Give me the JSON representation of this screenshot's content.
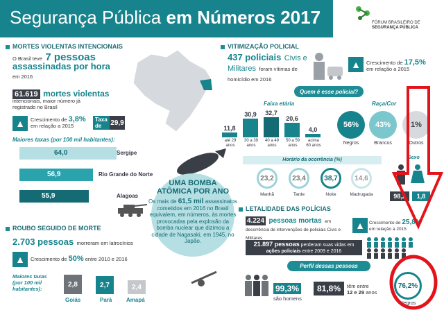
{
  "header": {
    "title_light": "Segurança Pública ",
    "title_bold": "em Números 2017"
  },
  "logo": {
    "line1": "FÓRUM BRASILEIRO DE",
    "line2": "SEGURANÇA PÚBLICA"
  },
  "mortes": {
    "section_title": "MORTES VIOLENTAS INTENCIONAIS",
    "prefix": "O Brasil teve",
    "big": "7 pessoas",
    "big2": "assassinadas por hora",
    "suffix": "em 2016",
    "count": "61.619",
    "count_label": "mortes violentas",
    "count_sub1": "intencionais, maior número já",
    "count_sub2": "registrado no Brasil",
    "growth_label": "Crescimento de",
    "growth_value": "3,8%",
    "growth_sub": "em relação a 2015",
    "taxa_label": "Taxa de",
    "taxa_value": "29,9",
    "maiores_title": "Maiores taxas (por 100 mil habitantes):",
    "rates": [
      {
        "value": "64,0",
        "state": "Sergipe"
      },
      {
        "value": "56,9",
        "state": "Rio Grande do Norte"
      },
      {
        "value": "55,9",
        "state": "Alagoas"
      }
    ]
  },
  "roubo": {
    "section_title": "ROUBO SEGUIDO DE MORTE",
    "count": "2.703 pessoas",
    "count_label": "morreram em latrocínios",
    "growth_label": "Crescimento de",
    "growth_value": "50%",
    "growth_sub": "entre 2010 e 2016",
    "maiores_title": "Maiores taxas (por 100 mil habitantes):",
    "bars": [
      {
        "value": "2,8",
        "state": "Goiás"
      },
      {
        "value": "2,7",
        "state": "Pará"
      },
      {
        "value": "2,4",
        "state": "Amapá"
      }
    ]
  },
  "bomba": {
    "title": "UMA BOMBA ATÔMICA POR ANO",
    "text_prefix": "Os mais de",
    "text_bold": "61,5 mil",
    "text_rest": "assassinatos cometidos em 2016 no Brasil equivalem, em números, às mortes provocadas pela explosão da bomba nuclear que dizimou a cidade de Nagasaki, em 1945, no Japão."
  },
  "vitimizacao": {
    "section_title": "VITIMIZAÇÃO POLICIAL",
    "big": "437 policiais",
    "big_rest": "Civis e Militares",
    "tail": "foram vítimas de homicídio em 2016",
    "growth_label": "Crescimento de",
    "growth_value": "17,5%",
    "growth_sub": "em relação a 2015",
    "quem_title": "Quem é esse policial?",
    "faixa_title": "Faixa etária",
    "ages": [
      {
        "value": "11,8",
        "label": "até 29 anos"
      },
      {
        "value": "30,9",
        "label": "30 a 39 anos"
      },
      {
        "value": "32,7",
        "label": "40 a 49 anos"
      },
      {
        "value": "20,6",
        "label": "50 a 59 anos"
      },
      {
        "value": "4,0",
        "label": "acima 60 anos"
      }
    ],
    "raca_title": "Raça/Cor",
    "raca": [
      {
        "value": "56%",
        "label": "Negros"
      },
      {
        "value": "43%",
        "label": "Brancos"
      },
      {
        "value": "1%",
        "label": "Outros"
      }
    ],
    "horario_title": "Horário da ocorrência (%)",
    "horario": [
      {
        "value": "23,2",
        "label": "Manhã"
      },
      {
        "value": "23,4",
        "label": "Tarde"
      },
      {
        "value": "38,7",
        "label": "Noite"
      },
      {
        "value": "14,6",
        "label": "Madrugada"
      }
    ],
    "sexo_title": "Sexo",
    "sexo": [
      {
        "value": "98,2"
      },
      {
        "value": "1,8"
      }
    ]
  },
  "letalidade": {
    "section_title": "LETALIDADE DAS POLÍCIAS",
    "count": "4.224",
    "count_label": "pessoas mortas",
    "count_rest": "em decorrência de intervenções de policiais Civis e Militares",
    "growth_label": "Crescimento de",
    "growth_value": "25,8%",
    "growth_sub": "em relação a 2015",
    "total": "21.897 pessoas",
    "total_rest": "perderam suas vidas em",
    "total_bold": "ações policiais",
    "total_tail": "entre 2009 e 2016",
    "perfil_title": "Perfil dessas pessoas",
    "homens_value": "99,3%",
    "homens_label": "são homens",
    "idade_value": "81,8%",
    "idade_label": "têm entre",
    "idade_bold": "12 e 29",
    "idade_tail": "anos",
    "negros_value": "76,2%",
    "negros_label": "Negros"
  },
  "colors": {
    "teal": "#17848d",
    "red": "#e3131b",
    "dark": "#3a3f47"
  }
}
